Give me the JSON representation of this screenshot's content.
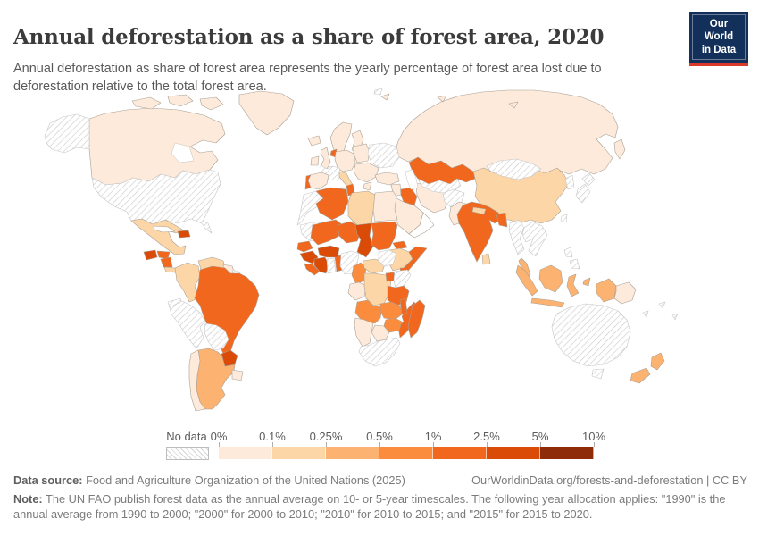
{
  "header": {
    "title": "Annual deforestation as a share of forest area, 2020",
    "subtitle_line1": "Annual deforestation as share of forest area represents the yearly percentage of forest area lost due to",
    "subtitle_line2": "deforestation relative to the total forest area.",
    "logo": {
      "line1": "Our World",
      "line2": "in Data",
      "bg_color": "#12305a",
      "accent_color": "#d93a2b"
    }
  },
  "legend": {
    "no_data_label": "No data",
    "ticks": [
      "0%",
      "0.1%",
      "0.25%",
      "0.5%",
      "1%",
      "2.5%",
      "5%",
      "10%"
    ]
  },
  "footer": {
    "datasource_label": "Data source:",
    "datasource_text": " Food and Agriculture Organization of the United Nations (2025)",
    "link_text": "OurWorldinData.org/forests-and-deforestation | CC BY",
    "note_label": "Note:",
    "note_text": " The UN FAO publish forest data as the annual average on 10- or 5-year timescales. The following year allocation applies: \"1990\" is the annual average from 1990 to 2000; \"2000\" for 2000 to 2010; \"2010\" for 2010 to 2015; and \"2015\" for 2015 to 2020."
  },
  "chart_data": {
    "type": "choropleth_map",
    "title": "Annual deforestation as a share of forest area",
    "year": "2020",
    "unit": "% of forest area lost per year",
    "zero_color": "#ffffff",
    "no_data_label": "No data",
    "legend_bins": [
      {
        "label": "0%-0.1%",
        "color": "#fdeadb"
      },
      {
        "label": "0.1%-0.25%",
        "color": "#fdd6a7"
      },
      {
        "label": "0.25%-0.5%",
        "color": "#fcb271"
      },
      {
        "label": "0.5%-1%",
        "color": "#fb8c3e"
      },
      {
        "label": "1%-2.5%",
        "color": "#f1671d"
      },
      {
        "label": "2.5%-5%",
        "color": "#da4b07"
      },
      {
        "label": "5%-10%",
        "color": "#8e2b08"
      }
    ],
    "countries": [
      {
        "id": "russia",
        "name": "Russia",
        "bin": 0
      },
      {
        "id": "svalbard",
        "name": "Svalbard",
        "bin": "no-data"
      },
      {
        "id": "canada",
        "name": "Canada",
        "bin": 0
      },
      {
        "id": "usa",
        "name": "United States",
        "bin": "no-data"
      },
      {
        "id": "greenland",
        "name": "Greenland",
        "bin": 0
      },
      {
        "id": "iceland",
        "name": "Iceland",
        "bin": 0
      },
      {
        "id": "mexico",
        "name": "Mexico",
        "bin": 1
      },
      {
        "id": "cuba",
        "name": "Cuba",
        "bin": "zero"
      },
      {
        "id": "hispaniola",
        "name": "Haiti & Dominican Republic",
        "bin": 5
      },
      {
        "id": "guatemala",
        "name": "Guatemala",
        "bin": 5
      },
      {
        "id": "honduras",
        "name": "Honduras",
        "bin": 4
      },
      {
        "id": "nicaragua",
        "name": "Nicaragua",
        "bin": 4
      },
      {
        "id": "costarica_panama",
        "name": "Costa Rica & Panama",
        "bin": 1
      },
      {
        "id": "colombia",
        "name": "Colombia",
        "bin": 1
      },
      {
        "id": "venezuela",
        "name": "Venezuela",
        "bin": 1
      },
      {
        "id": "guyanas",
        "name": "Guyana & Suriname",
        "bin": 0
      },
      {
        "id": "french_guiana",
        "name": "French Guiana",
        "bin": "no-data"
      },
      {
        "id": "brazil",
        "name": "Brazil",
        "bin": 4
      },
      {
        "id": "ecuador",
        "name": "Ecuador",
        "bin": "no-data"
      },
      {
        "id": "peru",
        "name": "Peru",
        "bin": "no-data"
      },
      {
        "id": "bolivia",
        "name": "Bolivia",
        "bin": "no-data"
      },
      {
        "id": "argentina",
        "name": "Argentina",
        "bin": 2
      },
      {
        "id": "chile",
        "name": "Chile",
        "bin": 0
      },
      {
        "id": "paraguay",
        "name": "Paraguay",
        "bin": 5
      },
      {
        "id": "uruguay",
        "name": "Uruguay",
        "bin": 0
      },
      {
        "id": "uk",
        "name": "United Kingdom",
        "bin": 0
      },
      {
        "id": "ireland",
        "name": "Ireland",
        "bin": 0
      },
      {
        "id": "scandinavia",
        "name": "Norway, Sweden & Finland",
        "bin": 0
      },
      {
        "id": "denmark",
        "name": "Denmark",
        "bin": 1
      },
      {
        "id": "netherlands",
        "name": "Netherlands",
        "bin": 4
      },
      {
        "id": "germany_central",
        "name": "Germany & Central Europe",
        "bin": 0
      },
      {
        "id": "france",
        "name": "France",
        "bin": "no-data"
      },
      {
        "id": "spain",
        "name": "Spain",
        "bin": 0
      },
      {
        "id": "portugal",
        "name": "Portugal",
        "bin": 4
      },
      {
        "id": "italy",
        "name": "Italy",
        "bin": 1
      },
      {
        "id": "poland_baltics",
        "name": "Poland & Baltic states",
        "bin": 0
      },
      {
        "id": "belarus_ukraine",
        "name": "Belarus & Ukraine",
        "bin": "no-data"
      },
      {
        "id": "romania_balkans",
        "name": "Romania & Balkans",
        "bin": 0
      },
      {
        "id": "greece",
        "name": "Greece",
        "bin": 0
      },
      {
        "id": "turkey",
        "name": "Turkey",
        "bin": 0
      },
      {
        "id": "levant",
        "name": "Syria & Levant",
        "bin": 0
      },
      {
        "id": "iraq",
        "name": "Iraq",
        "bin": 4
      },
      {
        "id": "saudi",
        "name": "Saudi Arabia",
        "bin": 0
      },
      {
        "id": "yemen_oman",
        "name": "Yemen & Oman",
        "bin": "zero"
      },
      {
        "id": "iran",
        "name": "Iran",
        "bin": 0
      },
      {
        "id": "kazakhstan",
        "name": "Kazakhstan",
        "bin": 4
      },
      {
        "id": "centralasia",
        "name": "Turkmenistan & Uzbekistan",
        "bin": "no-data"
      },
      {
        "id": "afghanistan",
        "name": "Afghanistan",
        "bin": "no-data"
      },
      {
        "id": "pakistan",
        "name": "Pakistan",
        "bin": 0
      },
      {
        "id": "china",
        "name": "China",
        "bin": 1
      },
      {
        "id": "mongolia",
        "name": "Mongolia",
        "bin": "no-data"
      },
      {
        "id": "india",
        "name": "India",
        "bin": 4
      },
      {
        "id": "nepal",
        "name": "Nepal",
        "bin": 1
      },
      {
        "id": "bangladesh",
        "name": "Bangladesh & Bhutan",
        "bin": 4
      },
      {
        "id": "korea",
        "name": "South Korea",
        "bin": "no-data"
      },
      {
        "id": "japan",
        "name": "Japan",
        "bin": "no-data"
      },
      {
        "id": "taiwan",
        "name": "Taiwan",
        "bin": "no-data"
      },
      {
        "id": "myanmar",
        "name": "Myanmar",
        "bin": "no-data"
      },
      {
        "id": "indochina",
        "name": "Thailand, Laos, Vietnam & Cambodia",
        "bin": "no-data"
      },
      {
        "id": "malaysia",
        "name": "Malaysia",
        "bin": 2
      },
      {
        "id": "srilanka",
        "name": "Sri Lanka",
        "bin": 1
      },
      {
        "id": "philippines",
        "name": "Philippines",
        "bin": "no-data"
      },
      {
        "id": "indonesia",
        "name": "Indonesia",
        "bin": 2
      },
      {
        "id": "png",
        "name": "Papua New Guinea",
        "bin": 0
      },
      {
        "id": "australia",
        "name": "Australia",
        "bin": "no-data"
      },
      {
        "id": "new_zealand",
        "name": "New Zealand",
        "bin": 2
      },
      {
        "id": "pacific_islands",
        "name": "Pacific islands",
        "bin": "no-data"
      },
      {
        "id": "morocco_wsahara",
        "name": "Morocco & Western Sahara",
        "bin": "no-data"
      },
      {
        "id": "algeria",
        "name": "Algeria",
        "bin": 4
      },
      {
        "id": "tunisia",
        "name": "Tunisia",
        "bin": 4
      },
      {
        "id": "libya",
        "name": "Libya",
        "bin": 1
      },
      {
        "id": "egypt",
        "name": "Egypt",
        "bin": 0
      },
      {
        "id": "mauritania",
        "name": "Mauritania",
        "bin": "no-data"
      },
      {
        "id": "mali",
        "name": "Mali",
        "bin": 4
      },
      {
        "id": "niger",
        "name": "Niger",
        "bin": 4
      },
      {
        "id": "chad",
        "name": "Chad",
        "bin": 5
      },
      {
        "id": "sudan",
        "name": "Sudan",
        "bin": 4
      },
      {
        "id": "eritrea",
        "name": "Eritrea",
        "bin": 4
      },
      {
        "id": "ethiopia",
        "name": "Ethiopia",
        "bin": 1
      },
      {
        "id": "somalia",
        "name": "Somalia",
        "bin": 4
      },
      {
        "id": "senegal",
        "name": "Senegal & Gambia",
        "bin": 4
      },
      {
        "id": "guinea",
        "name": "Guinea",
        "bin": 5
      },
      {
        "id": "sierraleone_liberia",
        "name": "Sierra Leone & Liberia",
        "bin": 4
      },
      {
        "id": "cotedivoire",
        "name": "Côte d'Ivoire",
        "bin": 5
      },
      {
        "id": "ghana",
        "name": "Ghana",
        "bin": "no-data"
      },
      {
        "id": "togo_benin",
        "name": "Togo & Benin",
        "bin": 4
      },
      {
        "id": "burkina",
        "name": "Burkina Faso",
        "bin": 5
      },
      {
        "id": "nigeria",
        "name": "Nigeria",
        "bin": "no-data"
      },
      {
        "id": "cameroon",
        "name": "Cameroon",
        "bin": 3
      },
      {
        "id": "car",
        "name": "Central African Republic",
        "bin": 1
      },
      {
        "id": "southsudan",
        "name": "South Sudan",
        "bin": "no-data"
      },
      {
        "id": "gabon_congo",
        "name": "Gabon & Congo",
        "bin": 0
      },
      {
        "id": "drc",
        "name": "Democratic Republic of Congo",
        "bin": 1
      },
      {
        "id": "uganda",
        "name": "Uganda",
        "bin": 4
      },
      {
        "id": "kenya",
        "name": "Kenya",
        "bin": "no-data"
      },
      {
        "id": "tanzania",
        "name": "Tanzania",
        "bin": 4
      },
      {
        "id": "angola",
        "name": "Angola",
        "bin": 3
      },
      {
        "id": "zambia",
        "name": "Zambia",
        "bin": 3
      },
      {
        "id": "mozambique",
        "name": "Mozambique",
        "bin": 4
      },
      {
        "id": "malawi",
        "name": "Malawi",
        "bin": 4
      },
      {
        "id": "zimbabwe",
        "name": "Zimbabwe",
        "bin": 3
      },
      {
        "id": "botswana",
        "name": "Botswana",
        "bin": 0
      },
      {
        "id": "namibia",
        "name": "Namibia",
        "bin": 0
      },
      {
        "id": "southafrica",
        "name": "South Africa",
        "bin": "no-data"
      },
      {
        "id": "madagascar",
        "name": "Madagascar",
        "bin": 4
      }
    ]
  }
}
